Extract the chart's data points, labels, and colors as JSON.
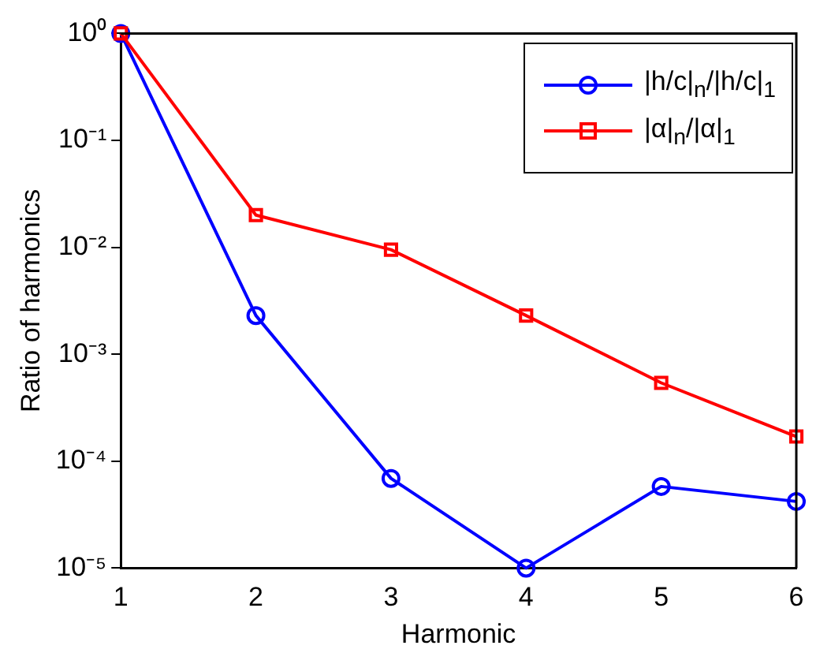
{
  "chart_data": {
    "type": "line",
    "xlabel": "Harmonic",
    "ylabel": "Ratio of harmonics",
    "x": [
      1,
      2,
      3,
      4,
      5,
      6
    ],
    "xlim": [
      1,
      6
    ],
    "xticks": [
      1,
      2,
      3,
      4,
      5,
      6
    ],
    "log": "y",
    "ylim": [
      1e-05,
      1
    ],
    "yticks": [
      {
        "value": 1e-05,
        "label": "10⁻⁵"
      },
      {
        "value": 0.0001,
        "label": "10⁻⁴"
      },
      {
        "value": 0.001,
        "label": "10⁻³"
      },
      {
        "value": 0.01,
        "label": "10⁻²"
      },
      {
        "value": 0.1,
        "label": "10⁻¹"
      },
      {
        "value": 1,
        "label": "10⁰"
      }
    ],
    "grid": false,
    "legend": "top right",
    "line_style": "solid",
    "series": [
      {
        "name": "|h/c|$_{n}$/|h/c|$_{1}$",
        "color": "#0000ff",
        "marker": "circle",
        "values": [
          1,
          0.0023,
          6.9e-05,
          1e-05,
          5.8e-05,
          4.2e-05
        ]
      },
      {
        "name": "|α|$_{n}$/|α|$_{1}$",
        "color": "#ff0000",
        "marker": "square",
        "values": [
          1,
          0.02,
          0.0095,
          0.0023,
          0.00054,
          0.00017
        ]
      }
    ]
  }
}
